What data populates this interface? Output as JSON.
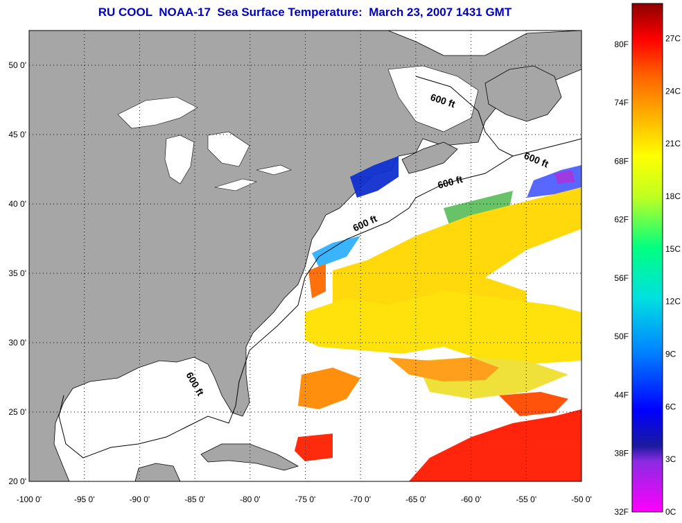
{
  "title": "RU COOL  NOAA-17  Sea Surface Temperature:  March 23, 2007 1431 GMT",
  "map": {
    "lon_range": [
      -100,
      -50
    ],
    "lat_range": [
      20,
      52.5
    ],
    "lon_ticks": [
      "-100 0'",
      "-95 0'",
      "-90 0'",
      "-85 0'",
      "-80 0'",
      "-75 0'",
      "-70 0'",
      "-65 0'",
      "-60 0'",
      "-55 0'",
      "-50 0'"
    ],
    "lat_ticks": [
      "20 0'",
      "25 0'",
      "30 0'",
      "35 0'",
      "40 0'",
      "45 0'",
      "50 0'"
    ],
    "contour_labels": [
      "600 ft",
      "600 ft",
      "600 ft",
      "600 ft",
      "600 ft"
    ],
    "colors": {
      "land": "#a6a6a6",
      "ocean": "#ffffff",
      "grid": "#000000"
    }
  },
  "colorbar": {
    "fahrenheit": [
      "80F",
      "74F",
      "68F",
      "62F",
      "56F",
      "50F",
      "44F",
      "38F",
      "32F"
    ],
    "celsius": [
      "27C",
      "24C",
      "21C",
      "18C",
      "15C",
      "12C",
      "9C",
      "6C",
      "3C",
      "0C"
    ],
    "range_c": [
      0,
      29
    ]
  }
}
